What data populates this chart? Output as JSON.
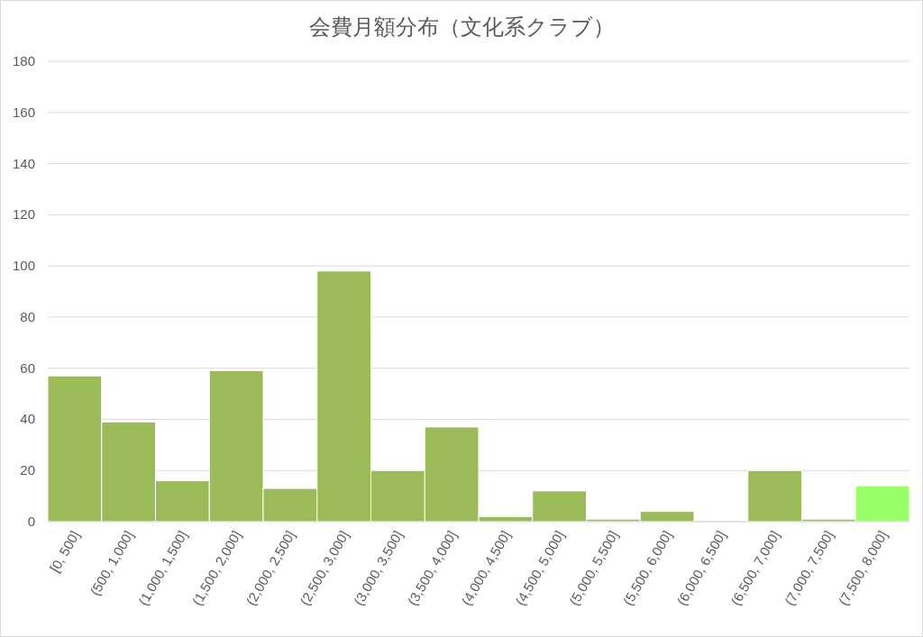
{
  "chart_data": {
    "type": "bar",
    "title": "会費月額分布（文化系クラブ）",
    "categories": [
      "[0, 500]",
      "(500, 1,000]",
      "(1,000, 1,500]",
      "(1,500, 2,000]",
      "(2,000, 2,500]",
      "(2,500, 3,000]",
      "(3,000, 3,500]",
      "(3,500, 4,000]",
      "(4,000, 4,500]",
      "(4,500, 5,000]",
      "(5,000, 5,500]",
      "(5,500, 6,000]",
      "(6,000, 6,500]",
      "(6,500, 7,000]",
      "(7,000, 7,500]",
      "(7,500, 8,000]"
    ],
    "values": [
      57,
      39,
      16,
      59,
      13,
      98,
      20,
      37,
      2,
      12,
      1,
      4,
      0,
      20,
      1,
      14
    ],
    "colors": [
      "#9bbb59",
      "#9bbb59",
      "#9bbb59",
      "#9bbb59",
      "#9bbb59",
      "#9bbb59",
      "#9bbb59",
      "#9bbb59",
      "#9bbb59",
      "#9bbb59",
      "#9bbb59",
      "#9bbb59",
      "#9bbb59",
      "#9bbb59",
      "#9bbb59",
      "#99ff66"
    ],
    "ylim": [
      0,
      180
    ],
    "yticks": [
      0,
      20,
      40,
      60,
      80,
      100,
      120,
      140,
      160,
      180
    ],
    "grid": "y"
  }
}
